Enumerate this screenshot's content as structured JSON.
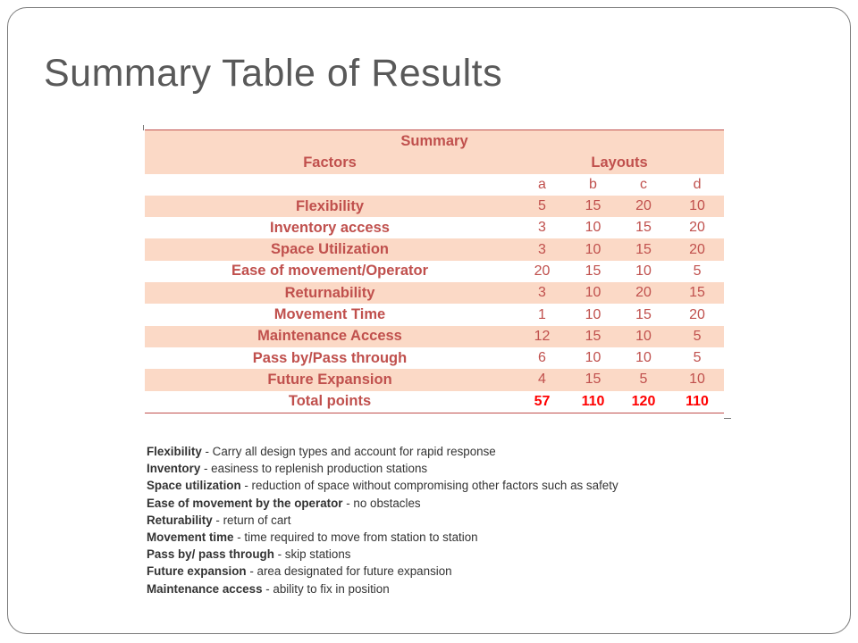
{
  "slide": {
    "title": "Summary Table of Results"
  },
  "table": {
    "caption": "Summary",
    "factors_header": "Factors",
    "layouts_header": "Layouts",
    "layout_labels": [
      "a",
      "b",
      "c",
      "d"
    ],
    "rows": [
      {
        "factor": "Flexibility",
        "values": [
          "5",
          "15",
          "20",
          "10"
        ]
      },
      {
        "factor": "Inventory access",
        "values": [
          "3",
          "10",
          "15",
          "20"
        ]
      },
      {
        "factor": "Space Utilization",
        "values": [
          "3",
          "10",
          "15",
          "20"
        ]
      },
      {
        "factor": "Ease of movement/Operator",
        "values": [
          "20",
          "15",
          "10",
          "5"
        ]
      },
      {
        "factor": "Returnability",
        "values": [
          "3",
          "10",
          "20",
          "15"
        ]
      },
      {
        "factor": "Movement Time",
        "values": [
          "1",
          "10",
          "15",
          "20"
        ]
      },
      {
        "factor": "Maintenance Access",
        "values": [
          "12",
          "15",
          "10",
          "5"
        ]
      },
      {
        "factor": "Pass by/Pass through",
        "values": [
          "6",
          "10",
          "10",
          "5"
        ]
      },
      {
        "factor": "Future Expansion",
        "values": [
          "4",
          "15",
          "5",
          "10"
        ]
      }
    ],
    "total": {
      "label": "Total points",
      "values": [
        "57",
        "110",
        "120",
        "110"
      ]
    }
  },
  "legend": [
    {
      "term": "Flexibility",
      "desc": " - Carry all design types and account for rapid response"
    },
    {
      "term": "Inventory",
      "desc": " - easiness to replenish production stations"
    },
    {
      "term": "Space utilization",
      "desc": " - reduction of space without compromising other factors such as safety"
    },
    {
      "term": "Ease of movement by the operator",
      "desc": " - no obstacles"
    },
    {
      "term": "Returability",
      "desc": " - return of cart"
    },
    {
      "term": "Movement time",
      "desc": " - time required to move from station to station"
    },
    {
      "term": "Pass by/ pass through",
      "desc": " - skip stations"
    },
    {
      "term": "Future expansion",
      "desc": " - area designated for future expansion"
    },
    {
      "term": "Maintenance access",
      "desc": " - ability to fix in position"
    }
  ],
  "colors": {
    "accent": "#c0504d",
    "shade": "#fbd9c6",
    "total": "#ff0000",
    "title": "#595959"
  }
}
